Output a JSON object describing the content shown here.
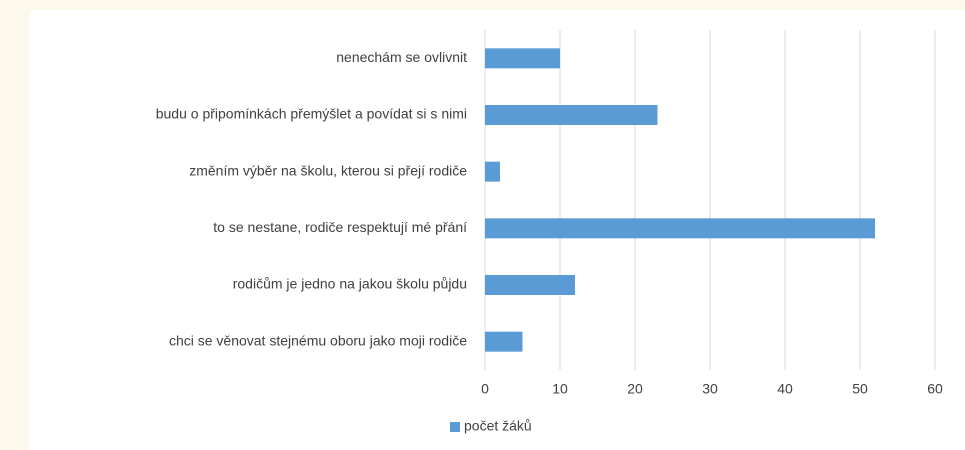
{
  "chart_data": {
    "type": "barh",
    "categories": [
      "nenechám se ovlivnit",
      "budu o připomínkách přemýšlet a povídat si s nimi",
      "změním výběr na školu, kterou si přejí rodiče",
      "to se nestane, rodiče respektují mé přání",
      "rodičům je jedno na jakou školu půjdu",
      "chci se věnovat stejnému oboru jako moji rodiče"
    ],
    "series": [
      {
        "name": "počet žáků",
        "color": "#5b9bd5",
        "values": [
          10,
          23,
          2,
          52,
          12,
          5
        ]
      }
    ],
    "xlim": [
      0,
      60
    ],
    "xticks": [
      0,
      10,
      20,
      30,
      40,
      50,
      60
    ],
    "grid": true,
    "legend": "bottom"
  }
}
